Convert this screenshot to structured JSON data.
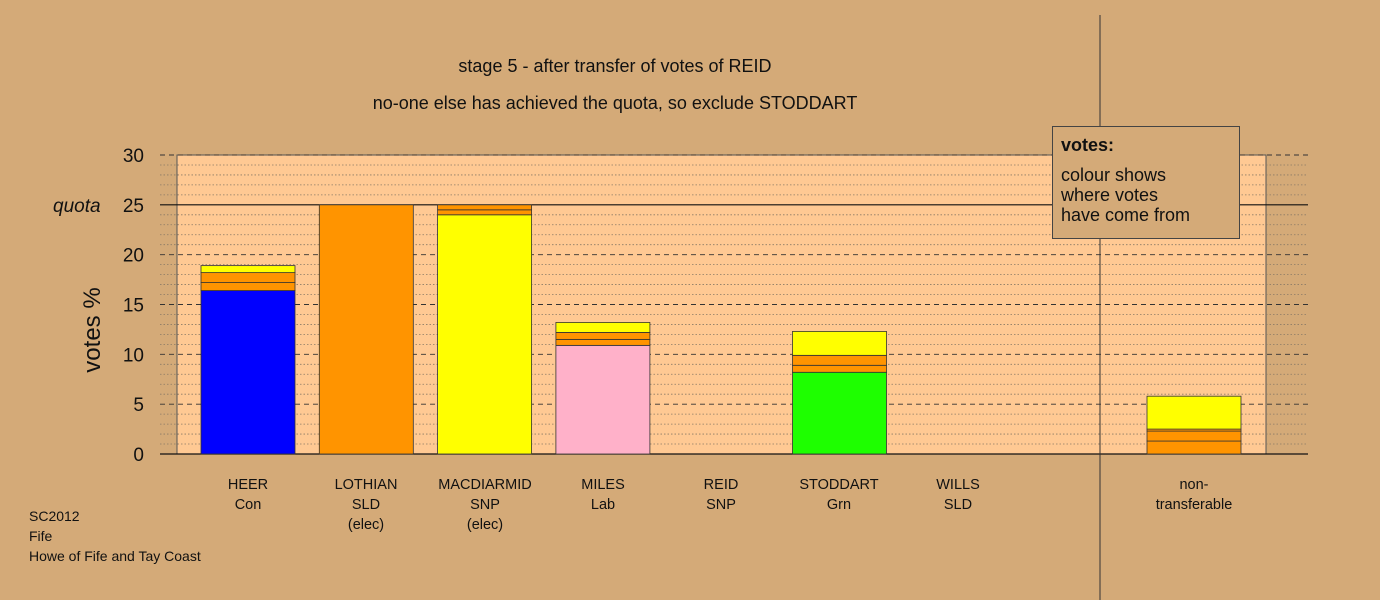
{
  "chart_data": {
    "type": "bar",
    "stacked": true,
    "title": "stage 5 - after transfer of votes of REID",
    "subtitle": "no-one else has achieved the quota, so exclude STODDART",
    "ylabel": "votes %",
    "ylim": [
      0,
      30
    ],
    "yticks": [
      0,
      5,
      10,
      15,
      20,
      25,
      30
    ],
    "quota": 25,
    "quota_label": "quota",
    "grid": true,
    "candidates": [
      {
        "name": "HEER",
        "party": "Con",
        "note": "",
        "segments": [
          {
            "value": 16.4,
            "color": "#0000ff"
          },
          {
            "value": 0.8,
            "color": "#ff9400"
          },
          {
            "value": 1.0,
            "color": "#ff9400"
          },
          {
            "value": 0.7,
            "color": "#ffff00"
          }
        ]
      },
      {
        "name": "LOTHIAN",
        "party": "SLD",
        "note": "(elec)",
        "segments": [
          {
            "value": 25.0,
            "color": "#ff9400"
          }
        ]
      },
      {
        "name": "MACDIARMID",
        "party": "SNP",
        "note": "(elec)",
        "segments": [
          {
            "value": 24.0,
            "color": "#ffff00"
          },
          {
            "value": 0.5,
            "color": "#ff9400"
          },
          {
            "value": 0.5,
            "color": "#ff9400"
          }
        ]
      },
      {
        "name": "MILES",
        "party": "Lab",
        "note": "",
        "segments": [
          {
            "value": 10.9,
            "color": "#ffb1c9"
          },
          {
            "value": 0.6,
            "color": "#ff9400"
          },
          {
            "value": 0.7,
            "color": "#ff9400"
          },
          {
            "value": 1.0,
            "color": "#ffff00"
          }
        ]
      },
      {
        "name": "REID",
        "party": "SNP",
        "note": "",
        "segments": []
      },
      {
        "name": "STODDART",
        "party": "Grn",
        "note": "",
        "segments": [
          {
            "value": 8.2,
            "color": "#1eff00"
          },
          {
            "value": 0.7,
            "color": "#ff9400"
          },
          {
            "value": 1.0,
            "color": "#ff9400"
          },
          {
            "value": 2.4,
            "color": "#ffff00"
          }
        ]
      },
      {
        "name": "WILLS",
        "party": "SLD",
        "note": "",
        "segments": []
      }
    ],
    "nontransferable": {
      "label": "non-",
      "label2": "transferable",
      "segments": [
        {
          "value": 1.3,
          "color": "#ff9400"
        },
        {
          "value": 1.0,
          "color": "#ff9400"
        },
        {
          "value": 0.2,
          "color": "#ff9400"
        },
        {
          "value": 3.3,
          "color": "#ffff00"
        }
      ]
    },
    "legend": {
      "title": "votes:",
      "lines": [
        "colour shows",
        "where votes",
        "have come from"
      ],
      "placement": "top-right"
    }
  },
  "footer": [
    "SC2012",
    "Fife",
    "Howe of Fife and Tay Coast"
  ]
}
